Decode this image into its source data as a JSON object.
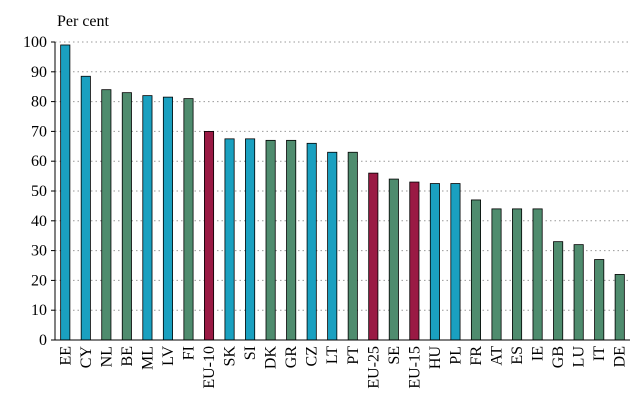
{
  "chart_data": {
    "type": "bar",
    "unit_label": "Per cent",
    "ylim": [
      0,
      100
    ],
    "yticks": [
      0,
      10,
      20,
      30,
      40,
      50,
      60,
      70,
      80,
      90,
      100
    ],
    "grid": "horizontal dotted",
    "categories": [
      "EE",
      "CY",
      "NL",
      "BE",
      "ML",
      "LV",
      "FI",
      "EU-10",
      "SK",
      "SI",
      "DK",
      "GR",
      "CZ",
      "LT",
      "PT",
      "EU-25",
      "SE",
      "EU-15",
      "HU",
      "PL",
      "FR",
      "AT",
      "ES",
      "IE",
      "GB",
      "LU",
      "IT",
      "DE"
    ],
    "values": [
      99,
      88.5,
      84,
      83,
      82,
      81.5,
      81,
      70,
      67.5,
      67.5,
      67,
      67,
      66,
      63,
      63,
      56,
      54,
      53,
      52.5,
      52.5,
      47,
      44,
      44,
      44,
      33,
      32,
      27,
      22
    ],
    "groups": [
      "new",
      "new",
      "old",
      "old",
      "new",
      "new",
      "old",
      "agg",
      "new",
      "new",
      "old",
      "old",
      "new",
      "new",
      "old",
      "agg",
      "old",
      "agg",
      "new",
      "new",
      "old",
      "old",
      "old",
      "old",
      "old",
      "old",
      "old",
      "old"
    ],
    "colors": {
      "new": "#1aa0c0",
      "old": "#4f8c6e",
      "agg": "#9a1a44"
    }
  }
}
